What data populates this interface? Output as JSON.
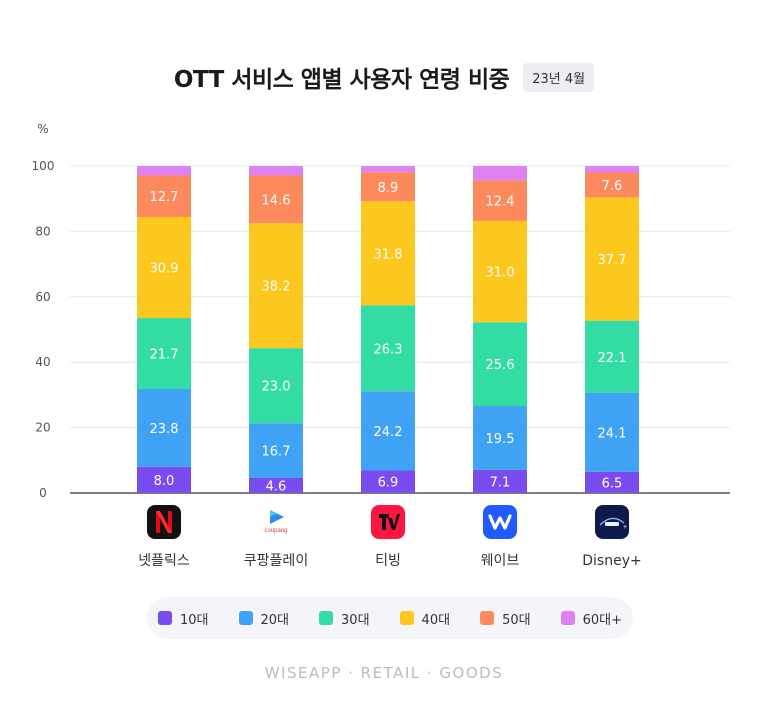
{
  "header": {
    "title": "OTT 서비스 앱별 사용자 연령 비중",
    "date_badge": "23년 4월"
  },
  "chart_data": {
    "type": "bar",
    "stacked": true,
    "ylabel": "%",
    "ylim": [
      0,
      100
    ],
    "yticks": [
      0,
      20,
      40,
      60,
      80,
      100
    ],
    "grid": true,
    "legend_position": "bottom",
    "categories": [
      "넷플릭스",
      "쿠팡플레이",
      "티빙",
      "웨이브",
      "Disney+"
    ],
    "series": [
      {
        "name": "10대",
        "color": "#7a4cf0",
        "values": [
          8.0,
          4.6,
          6.9,
          7.1,
          6.5
        ]
      },
      {
        "name": "20대",
        "color": "#3fa2f5",
        "values": [
          23.8,
          16.7,
          24.2,
          19.5,
          24.1
        ]
      },
      {
        "name": "30대",
        "color": "#33dca5",
        "values": [
          21.7,
          23.0,
          26.3,
          25.6,
          22.1
        ]
      },
      {
        "name": "40대",
        "color": "#fcc81e",
        "values": [
          30.9,
          38.2,
          31.8,
          31.0,
          37.7
        ]
      },
      {
        "name": "50대",
        "color": "#fc8a5c",
        "values": [
          12.7,
          14.6,
          8.9,
          12.4,
          7.6
        ]
      },
      {
        "name": "60대+",
        "color": "#de82f0",
        "values": [
          2.9,
          2.9,
          1.9,
          4.4,
          2.0
        ]
      }
    ],
    "value_labels": [
      [
        "8.0",
        "23.8",
        "21.7",
        "30.9",
        "12.7"
      ],
      [
        "4.6",
        "16.7",
        "23.0",
        "38.2",
        "14.6"
      ],
      [
        "6.9",
        "24.2",
        "26.3",
        "31.8",
        "8.9"
      ],
      [
        "7.1",
        "19.5",
        "25.6",
        "31.0",
        "12.4"
      ],
      [
        "6.5",
        "24.1",
        "22.1",
        "37.7",
        "7.6"
      ]
    ]
  },
  "app_icons": [
    "netflix-icon",
    "coupang-play-icon",
    "tving-icon",
    "wavve-icon",
    "disney-plus-icon"
  ],
  "icon_texts": {
    "coupang": "coupang"
  },
  "footer": "WISEAPP · RETAIL · GOODS"
}
